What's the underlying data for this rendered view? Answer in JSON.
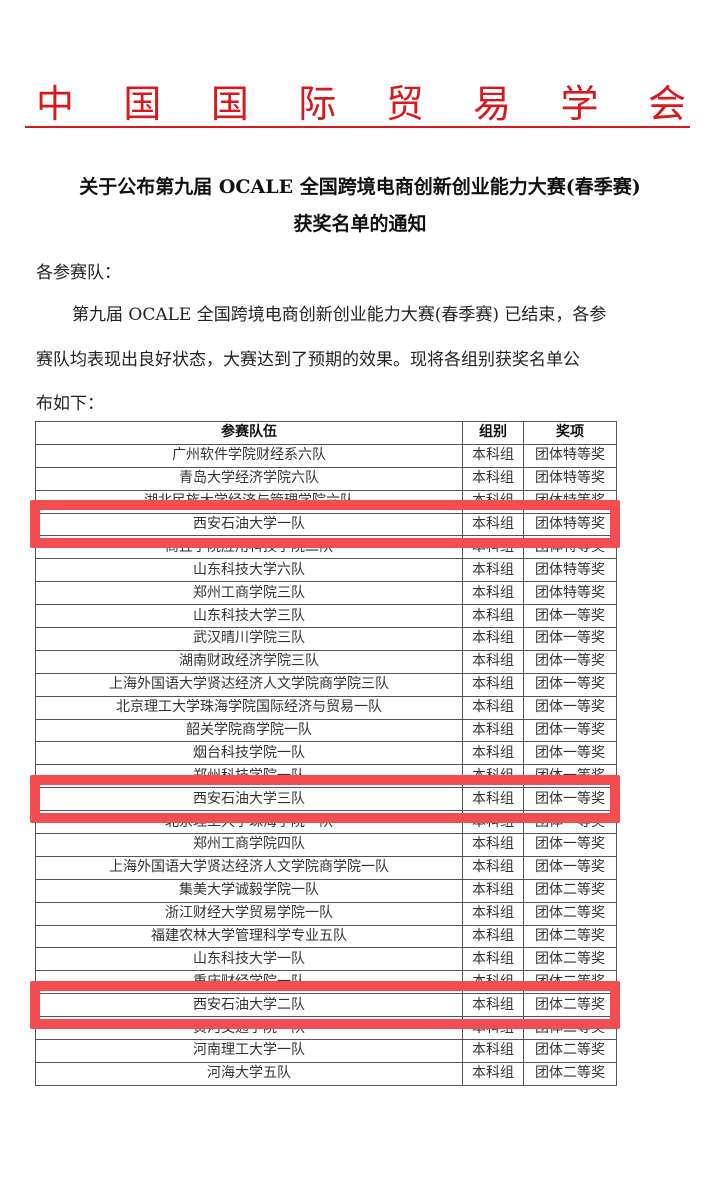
{
  "header": {
    "org_chars": [
      "中",
      "国",
      "国",
      "际",
      "贸",
      "易",
      "学",
      "会"
    ],
    "accent_color": "#d7191e"
  },
  "notice": {
    "title_line1": "关于公布第九届 OCALE 全国跨境电商创新创业能力大赛(春季赛)",
    "title_line2": "获奖名单的通知",
    "salutation": "各参赛队：",
    "body_line1": "第九届 OCALE 全国跨境电商创新创业能力大赛(春季赛) 已结束，各参",
    "body_line2": "赛队均表现出良好状态，大赛达到了预期的效果。现将各组别获奖名单公",
    "body_line3": "布如下："
  },
  "table": {
    "headers": [
      "参赛队伍",
      "组别",
      "奖项"
    ],
    "rows": [
      [
        "广州软件学院财经系六队",
        "本科组",
        "团体特等奖"
      ],
      [
        "青岛大学经济学院六队",
        "本科组",
        "团体特等奖"
      ],
      [
        "湖北民族大学经济与管理学院六队",
        "本科组",
        "团体特等奖"
      ],
      [
        "西安石油大学一队",
        "本科组",
        "团体特等奖"
      ],
      [
        "商丘学院应用科技学院二队",
        "本科组",
        "团体特等奖"
      ],
      [
        "山东科技大学六队",
        "本科组",
        "团体特等奖"
      ],
      [
        "郑州工商学院三队",
        "本科组",
        "团体特等奖"
      ],
      [
        "山东科技大学三队",
        "本科组",
        "团体一等奖"
      ],
      [
        "武汉晴川学院三队",
        "本科组",
        "团体一等奖"
      ],
      [
        "湖南财政经济学院三队",
        "本科组",
        "团体一等奖"
      ],
      [
        "上海外国语大学贤达经济人文学院商学院三队",
        "本科组",
        "团体一等奖"
      ],
      [
        "北京理工大学珠海学院国际经济与贸易一队",
        "本科组",
        "团体一等奖"
      ],
      [
        "韶关学院商学院一队",
        "本科组",
        "团体一等奖"
      ],
      [
        "烟台科技学院一队",
        "本科组",
        "团体一等奖"
      ],
      [
        "郑州科技学院一队",
        "本科组",
        "团体一等奖"
      ],
      [
        "西安石油大学三队",
        "本科组",
        "团体一等奖"
      ],
      [
        "北京理工大学珠海学院一队",
        "本科组",
        "团体一等奖"
      ],
      [
        "郑州工商学院四队",
        "本科组",
        "团体一等奖"
      ],
      [
        "上海外国语大学贤达经济人文学院商学院一队",
        "本科组",
        "团体一等奖"
      ],
      [
        "集美大学诚毅学院一队",
        "本科组",
        "团体二等奖"
      ],
      [
        "浙江财经大学贸易学院一队",
        "本科组",
        "团体二等奖"
      ],
      [
        "福建农林大学管理科学专业五队",
        "本科组",
        "团体二等奖"
      ],
      [
        "山东科技大学一队",
        "本科组",
        "团体二等奖"
      ],
      [
        "重庆财经学院一队",
        "本科组",
        "团体二等奖"
      ],
      [
        "西安石油大学二队",
        "本科组",
        "团体二等奖"
      ],
      [
        "黄河交通学院一队",
        "本科组",
        "团体二等奖"
      ],
      [
        "河南理工大学一队",
        "本科组",
        "团体二等奖"
      ],
      [
        "河海大学五队",
        "本科组",
        "团体二等奖"
      ]
    ],
    "highlighted_rows": [
      3,
      15,
      24
    ],
    "highlight_color": "#f44d51"
  }
}
